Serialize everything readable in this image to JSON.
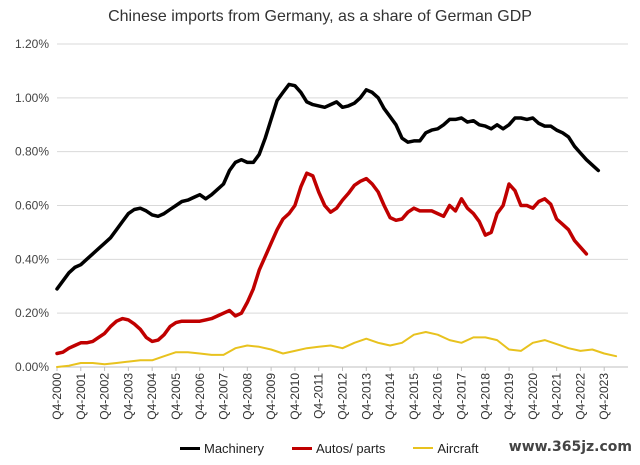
{
  "chart_data": {
    "type": "line",
    "title": "Chinese imports from Germany, as a share of German GDP",
    "xlabel": "",
    "ylabel": "",
    "ylim": [
      0.0,
      1.2
    ],
    "y_ticks": [
      "0.00%",
      "0.20%",
      "0.40%",
      "0.60%",
      "0.80%",
      "1.00%",
      "1.20%"
    ],
    "y_tick_values": [
      0.0,
      0.2,
      0.4,
      0.6,
      0.8,
      1.0,
      1.2
    ],
    "x_range": [
      "Q4-2000",
      "Q4-2024"
    ],
    "x_tick_labels": [
      "Q4-2000",
      "Q4-2001",
      "Q4-2002",
      "Q4-2003",
      "Q4-2004",
      "Q4-2005",
      "Q4-2006",
      "Q4-2007",
      "Q4-2008",
      "Q4-2009",
      "Q4-2010",
      "Q4-2011",
      "Q4-2012",
      "Q4-2013",
      "Q4-2014",
      "Q4-2015",
      "Q4-2016",
      "Q4-2017",
      "Q4-2018",
      "Q4-2019",
      "Q4-2020",
      "Q4-2021",
      "Q4-2022",
      "Q4-2023"
    ],
    "grid": "horizontal",
    "legend": "bottom",
    "series": [
      {
        "name": "Machinery",
        "color": "#000000",
        "points": [
          [
            "Q4-2000",
            0.29
          ],
          [
            "Q1-2001",
            0.32
          ],
          [
            "Q2-2001",
            0.35
          ],
          [
            "Q3-2001",
            0.37
          ],
          [
            "Q4-2001",
            0.38
          ],
          [
            "Q1-2002",
            0.4
          ],
          [
            "Q2-2002",
            0.42
          ],
          [
            "Q3-2002",
            0.44
          ],
          [
            "Q4-2002",
            0.46
          ],
          [
            "Q1-2003",
            0.48
          ],
          [
            "Q2-2003",
            0.51
          ],
          [
            "Q3-2003",
            0.54
          ],
          [
            "Q4-2003",
            0.57
          ],
          [
            "Q1-2004",
            0.585
          ],
          [
            "Q2-2004",
            0.59
          ],
          [
            "Q3-2004",
            0.58
          ],
          [
            "Q4-2004",
            0.565
          ],
          [
            "Q1-2005",
            0.56
          ],
          [
            "Q2-2005",
            0.57
          ],
          [
            "Q3-2005",
            0.585
          ],
          [
            "Q4-2005",
            0.6
          ],
          [
            "Q1-2006",
            0.615
          ],
          [
            "Q2-2006",
            0.62
          ],
          [
            "Q3-2006",
            0.63
          ],
          [
            "Q4-2006",
            0.64
          ],
          [
            "Q1-2007",
            0.625
          ],
          [
            "Q2-2007",
            0.64
          ],
          [
            "Q3-2007",
            0.66
          ],
          [
            "Q4-2007",
            0.68
          ],
          [
            "Q1-2008",
            0.73
          ],
          [
            "Q2-2008",
            0.76
          ],
          [
            "Q3-2008",
            0.77
          ],
          [
            "Q4-2008",
            0.76
          ],
          [
            "Q1-2009",
            0.76
          ],
          [
            "Q2-2009",
            0.79
          ],
          [
            "Q3-2009",
            0.85
          ],
          [
            "Q4-2009",
            0.92
          ],
          [
            "Q1-2010",
            0.99
          ],
          [
            "Q2-2010",
            1.02
          ],
          [
            "Q3-2010",
            1.05
          ],
          [
            "Q4-2010",
            1.045
          ],
          [
            "Q1-2011",
            1.02
          ],
          [
            "Q2-2011",
            0.985
          ],
          [
            "Q3-2011",
            0.975
          ],
          [
            "Q4-2011",
            0.97
          ],
          [
            "Q1-2012",
            0.965
          ],
          [
            "Q2-2012",
            0.975
          ],
          [
            "Q3-2012",
            0.985
          ],
          [
            "Q4-2012",
            0.965
          ],
          [
            "Q1-2013",
            0.97
          ],
          [
            "Q2-2013",
            0.98
          ],
          [
            "Q3-2013",
            1.0
          ],
          [
            "Q4-2013",
            1.03
          ],
          [
            "Q1-2014",
            1.02
          ],
          [
            "Q2-2014",
            1.0
          ],
          [
            "Q3-2014",
            0.96
          ],
          [
            "Q4-2014",
            0.93
          ],
          [
            "Q1-2015",
            0.9
          ],
          [
            "Q2-2015",
            0.85
          ],
          [
            "Q3-2015",
            0.835
          ],
          [
            "Q4-2015",
            0.84
          ],
          [
            "Q1-2016",
            0.84
          ],
          [
            "Q2-2016",
            0.87
          ],
          [
            "Q3-2016",
            0.88
          ],
          [
            "Q4-2016",
            0.885
          ],
          [
            "Q1-2017",
            0.9
          ],
          [
            "Q2-2017",
            0.92
          ],
          [
            "Q3-2017",
            0.92
          ],
          [
            "Q4-2017",
            0.925
          ],
          [
            "Q1-2018",
            0.91
          ],
          [
            "Q2-2018",
            0.915
          ],
          [
            "Q3-2018",
            0.9
          ],
          [
            "Q4-2018",
            0.895
          ],
          [
            "Q1-2019",
            0.885
          ],
          [
            "Q2-2019",
            0.9
          ],
          [
            "Q3-2019",
            0.885
          ],
          [
            "Q4-2019",
            0.9
          ],
          [
            "Q1-2020",
            0.925
          ],
          [
            "Q2-2020",
            0.925
          ],
          [
            "Q3-2020",
            0.92
          ],
          [
            "Q4-2020",
            0.925
          ],
          [
            "Q1-2021",
            0.905
          ],
          [
            "Q2-2021",
            0.895
          ],
          [
            "Q3-2021",
            0.895
          ],
          [
            "Q4-2021",
            0.88
          ],
          [
            "Q1-2022",
            0.87
          ],
          [
            "Q2-2022",
            0.855
          ],
          [
            "Q3-2022",
            0.82
          ],
          [
            "Q4-2022",
            0.795
          ],
          [
            "Q1-2023",
            0.77
          ],
          [
            "Q2-2023",
            0.75
          ],
          [
            "Q3-2023",
            0.73
          ]
        ]
      },
      {
        "name": "Autos/ parts",
        "color": "#c00000",
        "points": [
          [
            "Q4-2000",
            0.05
          ],
          [
            "Q1-2001",
            0.055
          ],
          [
            "Q2-2001",
            0.07
          ],
          [
            "Q3-2001",
            0.08
          ],
          [
            "Q4-2001",
            0.09
          ],
          [
            "Q1-2002",
            0.09
          ],
          [
            "Q2-2002",
            0.095
          ],
          [
            "Q3-2002",
            0.11
          ],
          [
            "Q4-2002",
            0.125
          ],
          [
            "Q1-2003",
            0.15
          ],
          [
            "Q2-2003",
            0.17
          ],
          [
            "Q3-2003",
            0.18
          ],
          [
            "Q4-2003",
            0.175
          ],
          [
            "Q1-2004",
            0.16
          ],
          [
            "Q2-2004",
            0.14
          ],
          [
            "Q3-2004",
            0.11
          ],
          [
            "Q4-2004",
            0.095
          ],
          [
            "Q1-2005",
            0.1
          ],
          [
            "Q2-2005",
            0.12
          ],
          [
            "Q3-2005",
            0.15
          ],
          [
            "Q4-2005",
            0.165
          ],
          [
            "Q1-2006",
            0.17
          ],
          [
            "Q2-2006",
            0.17
          ],
          [
            "Q3-2006",
            0.17
          ],
          [
            "Q4-2006",
            0.17
          ],
          [
            "Q1-2007",
            0.175
          ],
          [
            "Q2-2007",
            0.18
          ],
          [
            "Q3-2007",
            0.19
          ],
          [
            "Q4-2007",
            0.2
          ],
          [
            "Q1-2008",
            0.21
          ],
          [
            "Q2-2008",
            0.19
          ],
          [
            "Q3-2008",
            0.2
          ],
          [
            "Q4-2008",
            0.24
          ],
          [
            "Q1-2009",
            0.29
          ],
          [
            "Q2-2009",
            0.36
          ],
          [
            "Q3-2009",
            0.41
          ],
          [
            "Q4-2009",
            0.46
          ],
          [
            "Q1-2010",
            0.51
          ],
          [
            "Q2-2010",
            0.55
          ],
          [
            "Q3-2010",
            0.57
          ],
          [
            "Q4-2010",
            0.6
          ],
          [
            "Q1-2011",
            0.67
          ],
          [
            "Q2-2011",
            0.72
          ],
          [
            "Q3-2011",
            0.71
          ],
          [
            "Q4-2011",
            0.65
          ],
          [
            "Q1-2012",
            0.6
          ],
          [
            "Q2-2012",
            0.575
          ],
          [
            "Q3-2012",
            0.59
          ],
          [
            "Q4-2012",
            0.62
          ],
          [
            "Q1-2013",
            0.645
          ],
          [
            "Q2-2013",
            0.675
          ],
          [
            "Q3-2013",
            0.69
          ],
          [
            "Q4-2013",
            0.7
          ],
          [
            "Q1-2014",
            0.68
          ],
          [
            "Q2-2014",
            0.65
          ],
          [
            "Q3-2014",
            0.6
          ],
          [
            "Q4-2014",
            0.555
          ],
          [
            "Q1-2015",
            0.545
          ],
          [
            "Q2-2015",
            0.55
          ],
          [
            "Q3-2015",
            0.575
          ],
          [
            "Q4-2015",
            0.59
          ],
          [
            "Q1-2016",
            0.58
          ],
          [
            "Q2-2016",
            0.58
          ],
          [
            "Q3-2016",
            0.58
          ],
          [
            "Q4-2016",
            0.57
          ],
          [
            "Q1-2017",
            0.56
          ],
          [
            "Q2-2017",
            0.6
          ],
          [
            "Q3-2017",
            0.58
          ],
          [
            "Q4-2017",
            0.625
          ],
          [
            "Q1-2018",
            0.59
          ],
          [
            "Q2-2018",
            0.57
          ],
          [
            "Q3-2018",
            0.54
          ],
          [
            "Q4-2018",
            0.49
          ],
          [
            "Q1-2019",
            0.5
          ],
          [
            "Q2-2019",
            0.57
          ],
          [
            "Q3-2019",
            0.6
          ],
          [
            "Q4-2019",
            0.68
          ],
          [
            "Q1-2020",
            0.655
          ],
          [
            "Q2-2020",
            0.6
          ],
          [
            "Q3-2020",
            0.6
          ],
          [
            "Q4-2020",
            0.59
          ],
          [
            "Q1-2021",
            0.615
          ],
          [
            "Q2-2021",
            0.625
          ],
          [
            "Q3-2021",
            0.605
          ],
          [
            "Q4-2021",
            0.55
          ],
          [
            "Q1-2022",
            0.53
          ],
          [
            "Q2-2022",
            0.51
          ],
          [
            "Q3-2022",
            0.47
          ],
          [
            "Q4-2022",
            0.445
          ],
          [
            "Q1-2023",
            0.42
          ]
        ]
      },
      {
        "name": "Aircraft",
        "color": "#e8c21e",
        "points": [
          [
            "Q4-2000",
            0.0
          ],
          [
            "Q2-2001",
            0.005
          ],
          [
            "Q4-2001",
            0.015
          ],
          [
            "Q2-2002",
            0.015
          ],
          [
            "Q4-2002",
            0.01
          ],
          [
            "Q2-2003",
            0.015
          ],
          [
            "Q4-2003",
            0.02
          ],
          [
            "Q2-2004",
            0.025
          ],
          [
            "Q4-2004",
            0.025
          ],
          [
            "Q2-2005",
            0.04
          ],
          [
            "Q4-2005",
            0.055
          ],
          [
            "Q2-2006",
            0.055
          ],
          [
            "Q4-2006",
            0.05
          ],
          [
            "Q2-2007",
            0.045
          ],
          [
            "Q4-2007",
            0.045
          ],
          [
            "Q2-2008",
            0.07
          ],
          [
            "Q4-2008",
            0.08
          ],
          [
            "Q2-2009",
            0.075
          ],
          [
            "Q4-2009",
            0.065
          ],
          [
            "Q2-2010",
            0.05
          ],
          [
            "Q4-2010",
            0.06
          ],
          [
            "Q2-2011",
            0.07
          ],
          [
            "Q4-2011",
            0.075
          ],
          [
            "Q2-2012",
            0.08
          ],
          [
            "Q4-2012",
            0.07
          ],
          [
            "Q2-2013",
            0.09
          ],
          [
            "Q4-2013",
            0.105
          ],
          [
            "Q2-2014",
            0.09
          ],
          [
            "Q4-2014",
            0.08
          ],
          [
            "Q2-2015",
            0.09
          ],
          [
            "Q4-2015",
            0.12
          ],
          [
            "Q2-2016",
            0.13
          ],
          [
            "Q4-2016",
            0.12
          ],
          [
            "Q2-2017",
            0.1
          ],
          [
            "Q4-2017",
            0.09
          ],
          [
            "Q2-2018",
            0.11
          ],
          [
            "Q4-2018",
            0.11
          ],
          [
            "Q2-2019",
            0.1
          ],
          [
            "Q4-2019",
            0.065
          ],
          [
            "Q2-2020",
            0.06
          ],
          [
            "Q4-2020",
            0.09
          ],
          [
            "Q2-2021",
            0.1
          ],
          [
            "Q4-2021",
            0.085
          ],
          [
            "Q2-2022",
            0.07
          ],
          [
            "Q4-2022",
            0.06
          ],
          [
            "Q2-2023",
            0.065
          ],
          [
            "Q4-2023",
            0.05
          ],
          [
            "Q2-2024",
            0.04
          ]
        ]
      }
    ]
  },
  "watermark": "www.365jz.com"
}
